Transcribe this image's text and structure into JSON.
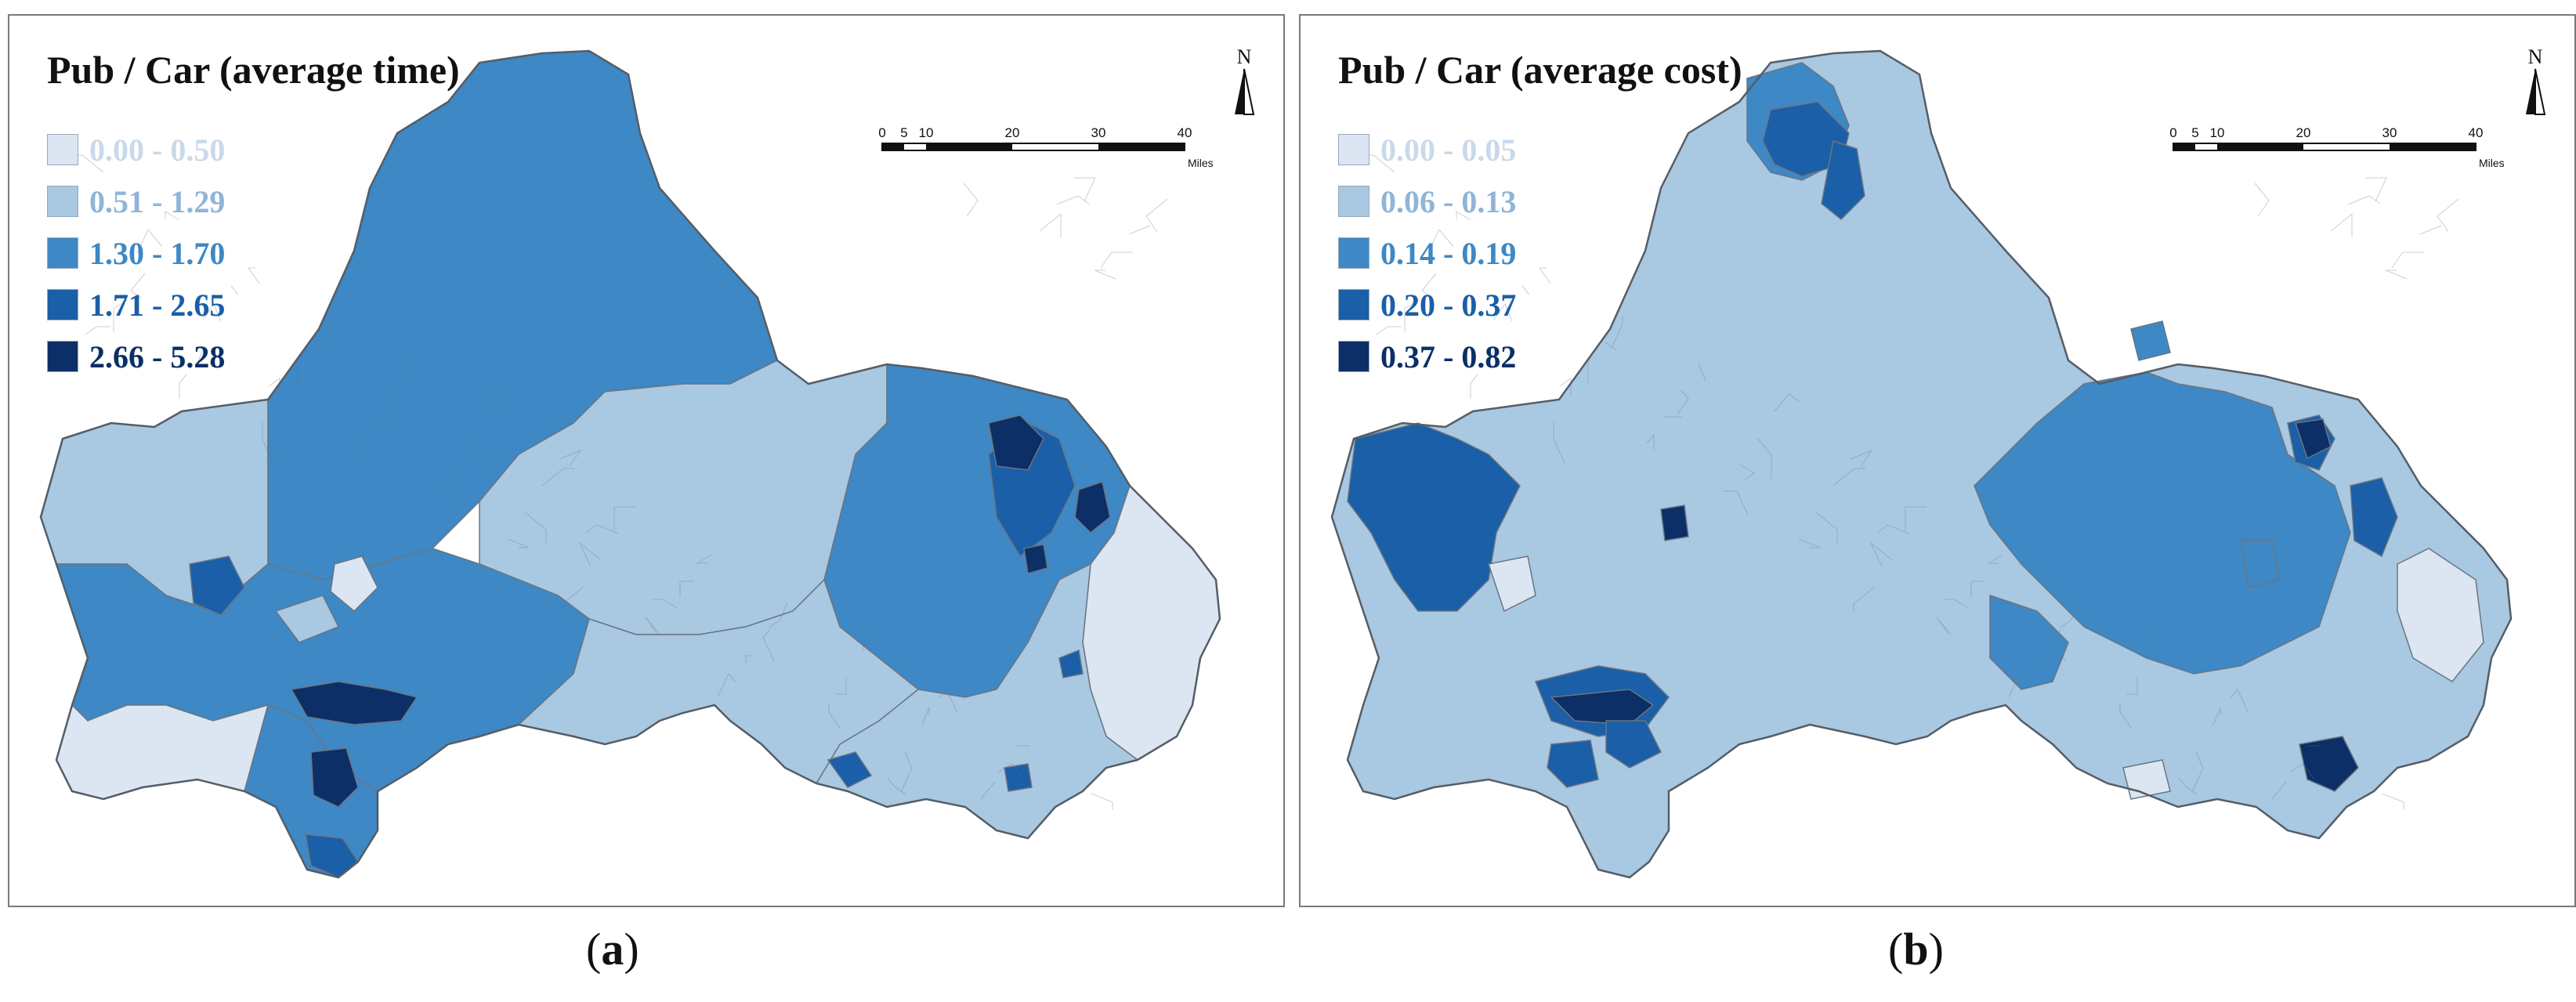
{
  "panels": [
    {
      "title": "Pub / Car (average time)",
      "legend": [
        {
          "label": "0.00 - 0.50",
          "color": "#dbe6f2"
        },
        {
          "label": "0.51 - 1.29",
          "color": "#a9c8e2"
        },
        {
          "label": "1.30 - 1.70",
          "color": "#3d88c5"
        },
        {
          "label": "1.71 - 2.65",
          "color": "#1a5fa7"
        },
        {
          "label": "2.66 - 5.28",
          "color": "#0b2f66"
        }
      ],
      "north_label": "N",
      "scale_ticks": [
        "0",
        "5",
        "10",
        "20",
        "30",
        "40"
      ],
      "scale_units": "Miles",
      "caption_letter": "a"
    },
    {
      "title": "Pub / Car (average cost)",
      "legend": [
        {
          "label": "0.00 - 0.05",
          "color": "#dbe6f2"
        },
        {
          "label": "0.06 - 0.13",
          "color": "#a9c8e2"
        },
        {
          "label": "0.14 - 0.19",
          "color": "#3d88c5"
        },
        {
          "label": "0.20 - 0.37",
          "color": "#1a5fa7"
        },
        {
          "label": "0.37 - 0.82",
          "color": "#0b2f66"
        }
      ],
      "north_label": "N",
      "scale_ticks": [
        "0",
        "5",
        "10",
        "20",
        "30",
        "40"
      ],
      "scale_units": "Miles",
      "caption_letter": "b"
    }
  ],
  "caption_open": "(",
  "caption_close": ")",
  "colors": {
    "outline": "#6b7580",
    "light": "#dbe6f2",
    "pale": "#a9c8e2",
    "mid": "#3d88c5",
    "dark": "#1a5fa7",
    "darkest": "#0b2f66"
  }
}
